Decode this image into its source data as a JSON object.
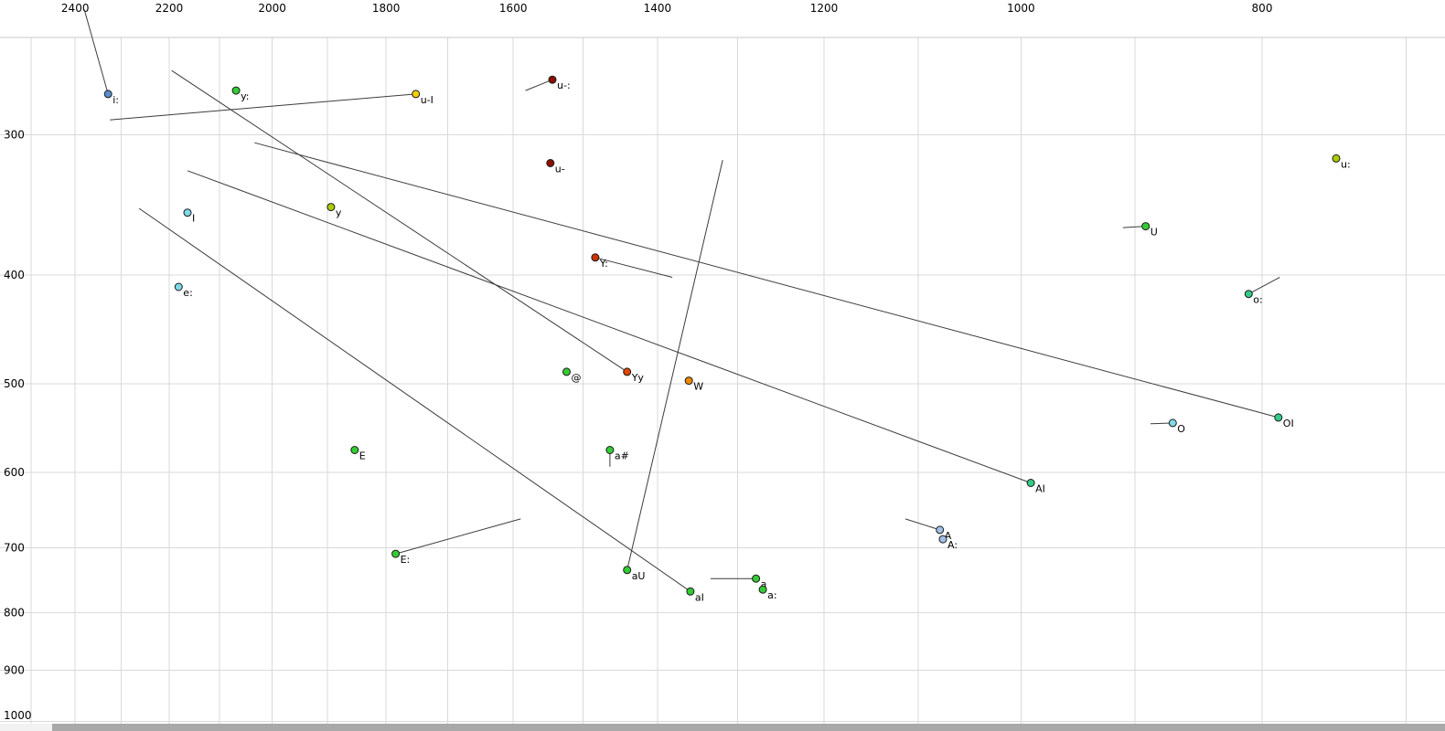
{
  "chart_data": {
    "type": "scatter",
    "title": "",
    "x_axis": {
      "unit": "Hz",
      "scale": "log",
      "reversed": true,
      "position": "top",
      "tick_labels": [
        2400,
        2200,
        2000,
        1800,
        1600,
        1400,
        1200,
        1000,
        800
      ],
      "grid_min": 700,
      "grid_max": 2500,
      "grid_step": 100
    },
    "y_axis": {
      "unit": "Hz",
      "scale": "log",
      "reversed": false,
      "position": "left",
      "tick_labels": [
        300,
        400,
        500,
        600,
        700,
        800,
        900,
        1000
      ],
      "grid_min": 300,
      "grid_max": 1000,
      "grid_step": 100
    },
    "grid": true,
    "points": [
      {
        "label": "i:",
        "f2": 2328,
        "f1": 276,
        "color": "#5b8ccc"
      },
      {
        "label": "y:",
        "f2": 2068,
        "f1": 274,
        "color": "#33cc33"
      },
      {
        "label": "u-I",
        "f2": 1751,
        "f1": 276,
        "color": "#f0d000"
      },
      {
        "label": "u-:",
        "f2": 1543,
        "f1": 268,
        "color": "#8b0f00"
      },
      {
        "label": "u-",
        "f2": 1546,
        "f1": 318,
        "color": "#8b0f00"
      },
      {
        "label": "y",
        "f2": 1894,
        "f1": 348,
        "color": "#aacc00"
      },
      {
        "label": "I",
        "f2": 2163,
        "f1": 352,
        "color": "#7fd8e8"
      },
      {
        "label": "U",
        "f2": 891,
        "f1": 362,
        "color": "#33cc33"
      },
      {
        "label": "u:",
        "f2": 747,
        "f1": 315,
        "color": "#aacc00"
      },
      {
        "label": "Y:",
        "f2": 1483,
        "f1": 386,
        "color": "#cc3300"
      },
      {
        "label": "e:",
        "f2": 2181,
        "f1": 410,
        "color": "#7fd8e8"
      },
      {
        "label": "o:",
        "f2": 810,
        "f1": 416,
        "color": "#33cc88"
      },
      {
        "label": "@",
        "f2": 1523,
        "f1": 488,
        "color": "#33cc33"
      },
      {
        "label": "Yy",
        "f2": 1440,
        "f1": 488,
        "color": "#e04800"
      },
      {
        "label": "W",
        "f2": 1360,
        "f1": 497,
        "color": "#ee8800"
      },
      {
        "label": "O",
        "f2": 869,
        "f1": 542,
        "color": "#7fd8e8"
      },
      {
        "label": "OI",
        "f2": 788,
        "f1": 536,
        "color": "#33cc88"
      },
      {
        "label": "E",
        "f2": 1853,
        "f1": 573,
        "color": "#33cc33"
      },
      {
        "label": "a#",
        "f2": 1463,
        "f1": 573,
        "color": "#33cc33"
      },
      {
        "label": "AI",
        "f2": 991,
        "f1": 613,
        "color": "#33cc88"
      },
      {
        "label": "A",
        "f2": 1078,
        "f1": 675,
        "color": "#9fc0e8"
      },
      {
        "label": "A:",
        "f2": 1075,
        "f1": 688,
        "color": "#9fc0e8"
      },
      {
        "label": "E:",
        "f2": 1784,
        "f1": 709,
        "color": "#33cc33"
      },
      {
        "label": "aU",
        "f2": 1440,
        "f1": 733,
        "color": "#33cc33"
      },
      {
        "label": "aI",
        "f2": 1358,
        "f1": 766,
        "color": "#33cc33"
      },
      {
        "label": "a",
        "f2": 1278,
        "f1": 746,
        "color": "#33cc33"
      },
      {
        "label": "a:",
        "f2": 1270,
        "f1": 763,
        "color": "#33cc33"
      }
    ],
    "trajectories": [
      {
        "for": "i:",
        "from": [
          2380,
          232
        ],
        "to": [
          2328,
          276
        ]
      },
      {
        "for": "u-I",
        "from": [
          2324,
          291
        ],
        "to": [
          1751,
          276
        ]
      },
      {
        "for": "Yy",
        "from": [
          2195,
          263
        ],
        "to": [
          1440,
          488
        ]
      },
      {
        "for": "AI",
        "from": [
          2163,
          323
        ],
        "to": [
          991,
          613
        ]
      },
      {
        "for": "OI",
        "from": [
          2033,
          305
        ],
        "to": [
          788,
          536
        ]
      },
      {
        "for": "aI",
        "from": [
          2262,
          349
        ],
        "to": [
          1358,
          766
        ]
      },
      {
        "for": "aU",
        "from": [
          1318,
          316
        ],
        "to": [
          1440,
          733
        ]
      },
      {
        "for": "u-:",
        "from": [
          1582,
          274
        ],
        "to": [
          1543,
          268
        ]
      },
      {
        "for": "Y:",
        "from": [
          1483,
          386
        ],
        "to": [
          1381,
          402
        ]
      },
      {
        "for": "U",
        "from": [
          910,
          363
        ],
        "to": [
          891,
          362
        ]
      },
      {
        "for": "o:",
        "from": [
          787,
          402
        ],
        "to": [
          810,
          416
        ]
      },
      {
        "for": "O",
        "from": [
          887,
          543
        ],
        "to": [
          869,
          542
        ]
      },
      {
        "for": "A",
        "from": [
          1113,
          660
        ],
        "to": [
          1078,
          675
        ]
      },
      {
        "for": "E:",
        "from": [
          1589,
          660
        ],
        "to": [
          1784,
          709
        ]
      },
      {
        "for": "a",
        "from": [
          1333,
          746
        ],
        "to": [
          1278,
          746
        ]
      },
      {
        "for": "a#",
        "from": [
          1463,
          573
        ],
        "to": [
          1463,
          593
        ]
      }
    ]
  }
}
